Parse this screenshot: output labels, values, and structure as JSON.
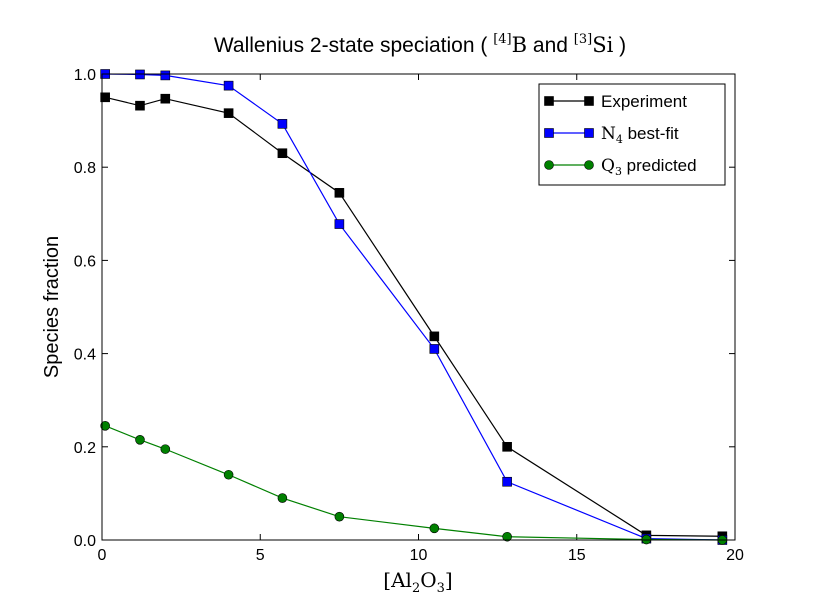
{
  "chart_data": {
    "type": "line",
    "title": {
      "prefix": "Wallenius 2-state speciation ( ",
      "sup1": "[4]",
      "sym1": "B",
      "mid": " and ",
      "sup2": "[3]",
      "sym2": "Si",
      "suffix": " )"
    },
    "xlabel": {
      "open": "[Al",
      "sub1": "2",
      "mid": "O",
      "sub2": "3",
      "close": "]"
    },
    "ylabel": "Species fraction",
    "xlim": [
      0,
      20
    ],
    "ylim": [
      0,
      1.0
    ],
    "xticks": [
      0,
      5,
      10,
      15,
      20
    ],
    "xtick_labels": [
      "0",
      "5",
      "10",
      "15",
      "20"
    ],
    "yticks": [
      0.0,
      0.2,
      0.4,
      0.6,
      0.8,
      1.0
    ],
    "ytick_labels": [
      "0.0",
      "0.2",
      "0.4",
      "0.6",
      "0.8",
      "1.0"
    ],
    "grid": false,
    "legend_position": "top-right",
    "series": [
      {
        "name": "Experiment",
        "legend": {
          "main": "Experiment",
          "sub": "",
          "rest": ""
        },
        "color": "#000000",
        "marker": "square",
        "x": [
          0.1,
          1.2,
          2.0,
          4.0,
          5.7,
          7.5,
          10.5,
          12.8,
          17.2,
          19.6
        ],
        "y": [
          0.95,
          0.932,
          0.947,
          0.916,
          0.83,
          0.745,
          0.437,
          0.2,
          0.01,
          0.008
        ]
      },
      {
        "name": "N4 best-fit",
        "legend": {
          "main": "N",
          "sub": "4",
          "rest": " best-fit"
        },
        "color": "#0000ff",
        "marker": "square",
        "x": [
          0.1,
          1.2,
          2.0,
          4.0,
          5.7,
          7.5,
          10.5,
          12.8,
          17.2,
          19.6
        ],
        "y": [
          1.0,
          0.999,
          0.997,
          0.975,
          0.893,
          0.678,
          0.41,
          0.125,
          0.003,
          0.0
        ]
      },
      {
        "name": "Q3 predicted",
        "legend": {
          "main": "Q",
          "sub": "3",
          "rest": " predicted"
        },
        "color": "#008000",
        "marker": "circle",
        "x": [
          0.1,
          1.2,
          2.0,
          4.0,
          5.7,
          7.5,
          10.5,
          12.8,
          17.2,
          19.6
        ],
        "y": [
          0.245,
          0.215,
          0.195,
          0.14,
          0.09,
          0.05,
          0.025,
          0.007,
          0.001,
          0.0
        ]
      }
    ]
  }
}
